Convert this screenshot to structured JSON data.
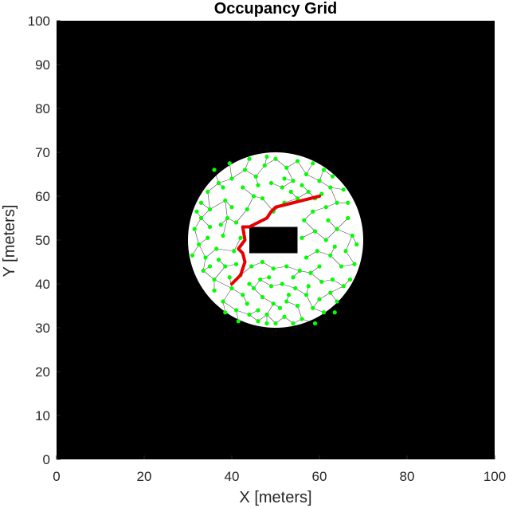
{
  "chart_data": {
    "type": "scatter",
    "title": "Occupancy Grid",
    "xlabel": "X [meters]",
    "ylabel": "Y [meters]",
    "xlim": [
      0,
      100
    ],
    "ylim": [
      0,
      100
    ],
    "x_ticks": [
      "0",
      "20",
      "40",
      "60",
      "80",
      "100"
    ],
    "y_ticks": [
      "0",
      "10",
      "20",
      "30",
      "40",
      "50",
      "60",
      "70",
      "80",
      "90",
      "100"
    ],
    "grid": false,
    "occupancy": {
      "background": "occupied",
      "free_disk": {
        "center": [
          50,
          50
        ],
        "radius": 20
      },
      "obstacle_rect": {
        "x": [
          44,
          55
        ],
        "y": [
          47,
          53
        ]
      }
    },
    "node_points": [
      [
        31.5,
        52.5
      ],
      [
        33.0,
        55.0
      ],
      [
        32.5,
        49.0
      ],
      [
        34.0,
        46.0
      ],
      [
        33.5,
        43.0
      ],
      [
        36.0,
        41.0
      ],
      [
        35.0,
        57.0
      ],
      [
        34.5,
        61.0
      ],
      [
        37.0,
        63.0
      ],
      [
        38.5,
        59.0
      ],
      [
        39.0,
        55.0
      ],
      [
        38.0,
        51.0
      ],
      [
        36.5,
        48.0
      ],
      [
        38.5,
        44.0
      ],
      [
        40.0,
        39.0
      ],
      [
        38.0,
        36.0
      ],
      [
        41.0,
        34.0
      ],
      [
        42.5,
        37.5
      ],
      [
        44.0,
        33.0
      ],
      [
        46.0,
        31.5
      ],
      [
        48.0,
        33.0
      ],
      [
        50.0,
        31.0
      ],
      [
        52.0,
        32.5
      ],
      [
        54.0,
        31.0
      ],
      [
        56.0,
        32.0
      ],
      [
        55.0,
        35.0
      ],
      [
        52.5,
        36.0
      ],
      [
        49.5,
        35.5
      ],
      [
        47.0,
        37.0
      ],
      [
        45.0,
        39.0
      ],
      [
        46.5,
        41.0
      ],
      [
        49.0,
        39.5
      ],
      [
        51.5,
        40.0
      ],
      [
        54.5,
        39.0
      ],
      [
        57.0,
        37.5
      ],
      [
        58.5,
        34.5
      ],
      [
        60.0,
        36.5
      ],
      [
        61.0,
        33.5
      ],
      [
        62.5,
        38.0
      ],
      [
        64.0,
        36.0
      ],
      [
        65.5,
        39.5
      ],
      [
        63.0,
        41.0
      ],
      [
        60.5,
        40.5
      ],
      [
        58.0,
        42.5
      ],
      [
        55.5,
        43.0
      ],
      [
        52.5,
        44.0
      ],
      [
        49.5,
        43.5
      ],
      [
        47.0,
        45.0
      ],
      [
        44.5,
        44.0
      ],
      [
        42.0,
        42.0
      ],
      [
        40.5,
        47.5
      ],
      [
        42.0,
        50.5
      ],
      [
        41.0,
        54.0
      ],
      [
        43.5,
        57.0
      ],
      [
        45.0,
        60.0
      ],
      [
        42.5,
        62.0
      ],
      [
        40.0,
        64.0
      ],
      [
        43.0,
        66.0
      ],
      [
        45.5,
        64.5
      ],
      [
        47.5,
        67.0
      ],
      [
        50.0,
        68.5
      ],
      [
        52.5,
        66.5
      ],
      [
        55.0,
        68.0
      ],
      [
        57.0,
        65.0
      ],
      [
        54.0,
        63.5
      ],
      [
        51.5,
        62.0
      ],
      [
        49.0,
        63.0
      ],
      [
        47.0,
        59.5
      ],
      [
        49.5,
        56.5
      ],
      [
        52.0,
        58.5
      ],
      [
        55.0,
        59.5
      ],
      [
        57.5,
        61.0
      ],
      [
        60.0,
        63.5
      ],
      [
        62.5,
        62.0
      ],
      [
        64.0,
        58.5
      ],
      [
        61.5,
        57.5
      ],
      [
        58.5,
        56.5
      ],
      [
        56.5,
        54.5
      ],
      [
        59.0,
        52.0
      ],
      [
        61.5,
        50.0
      ],
      [
        64.0,
        52.5
      ],
      [
        66.5,
        55.0
      ],
      [
        67.5,
        51.0
      ],
      [
        66.0,
        47.5
      ],
      [
        68.0,
        44.5
      ],
      [
        65.0,
        44.0
      ],
      [
        62.5,
        46.5
      ],
      [
        59.5,
        47.5
      ],
      [
        57.0,
        46.0
      ],
      [
        56.0,
        50.5
      ],
      [
        66.5,
        58.5
      ],
      [
        65.5,
        61.5
      ],
      [
        35.0,
        53.0
      ],
      [
        37.5,
        53.5
      ],
      [
        33.0,
        58.5
      ],
      [
        36.0,
        66.0
      ],
      [
        39.5,
        67.5
      ],
      [
        44.0,
        68.5
      ],
      [
        48.0,
        69.0
      ],
      [
        58.5,
        67.5
      ],
      [
        61.0,
        66.0
      ],
      [
        63.0,
        64.5
      ],
      [
        36.0,
        38.5
      ],
      [
        39.5,
        41.5
      ],
      [
        43.5,
        35.5
      ],
      [
        46.0,
        34.0
      ],
      [
        51.0,
        34.5
      ],
      [
        53.0,
        37.5
      ],
      [
        57.5,
        39.5
      ],
      [
        60.0,
        44.0
      ],
      [
        63.5,
        48.5
      ],
      [
        68.5,
        49.0
      ],
      [
        37.0,
        45.5
      ],
      [
        40.0,
        57.5
      ],
      [
        46.0,
        62.5
      ],
      [
        53.5,
        61.0
      ],
      [
        59.0,
        59.5
      ],
      [
        62.0,
        54.5
      ],
      [
        48.5,
        41.5
      ],
      [
        54.0,
        41.5
      ],
      [
        44.0,
        40.0
      ],
      [
        41.0,
        44.5
      ],
      [
        34.5,
        50.5
      ],
      [
        31.0,
        46.5
      ],
      [
        67.0,
        41.0
      ],
      [
        63.5,
        33.5
      ],
      [
        59.0,
        31.0
      ],
      [
        48.0,
        31.0
      ],
      [
        41.5,
        31.5
      ],
      [
        38.5,
        33.5
      ],
      [
        35.0,
        44.0
      ],
      [
        32.0,
        56.5
      ],
      [
        38.0,
        62.0
      ],
      [
        52.0,
        64.0
      ],
      [
        56.0,
        62.5
      ],
      [
        60.5,
        60.5
      ]
    ],
    "path": [
      [
        40,
        40
      ],
      [
        42,
        42
      ],
      [
        43,
        45
      ],
      [
        42.5,
        47
      ],
      [
        41.5,
        48
      ],
      [
        43,
        50
      ],
      [
        42.5,
        53
      ],
      [
        44,
        53
      ],
      [
        46,
        54
      ],
      [
        48,
        55
      ],
      [
        49,
        56.5
      ],
      [
        50,
        57.5
      ],
      [
        52,
        58
      ],
      [
        54,
        58.5
      ],
      [
        56,
        59
      ],
      [
        58,
        59.5
      ],
      [
        60,
        60
      ]
    ],
    "colors": {
      "occupied": "#000000",
      "free": "#ffffff",
      "nodes": "#00ff00",
      "tree": "#000000",
      "path": "#e80000"
    }
  }
}
